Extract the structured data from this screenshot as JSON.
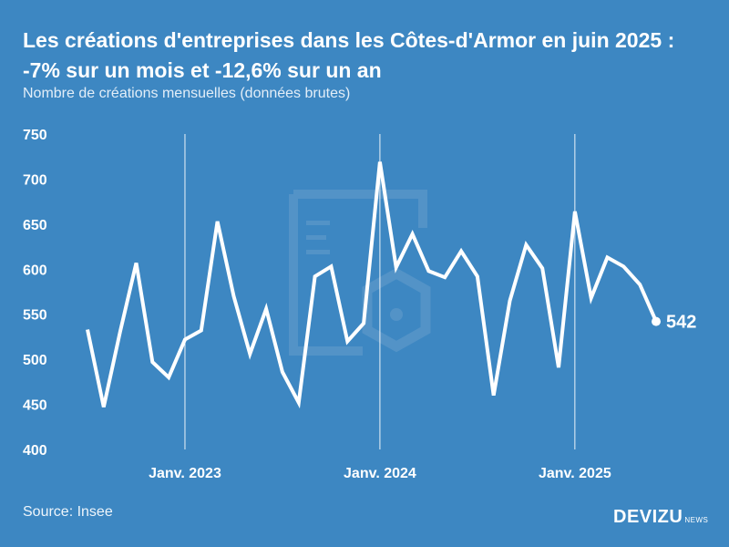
{
  "title": "Les créations d'entreprises dans les Côtes-d'Armor en juin 2025 : -7% sur un mois et -12,6% sur un an",
  "subtitle": "Nombre de créations mensuelles (données brutes)",
  "source": "Source: Insee",
  "brand": {
    "name": "DEVIZU",
    "suffix": "NEWS"
  },
  "colors": {
    "background": "#3d87c2",
    "line": "#ffffff",
    "watermark": "#6a9fcc"
  },
  "watermark_icon": "document-gear-icon",
  "chart_data": {
    "type": "line",
    "title": "Les créations d'entreprises dans les Côtes-d'Armor en juin 2025 : -7% sur un mois et -12,6% sur un an",
    "subtitle": "Nombre de créations mensuelles (données brutes)",
    "xlabel": "",
    "ylabel": "",
    "ylim": [
      400,
      750
    ],
    "y_ticks": [
      400,
      450,
      500,
      550,
      600,
      650,
      700,
      750
    ],
    "x_start": "2022-07",
    "x": [
      "2022-07",
      "2022-08",
      "2022-09",
      "2022-10",
      "2022-11",
      "2022-12",
      "2023-01",
      "2023-02",
      "2023-03",
      "2023-04",
      "2023-05",
      "2023-06",
      "2023-07",
      "2023-08",
      "2023-09",
      "2023-10",
      "2023-11",
      "2023-12",
      "2024-01",
      "2024-02",
      "2024-03",
      "2024-04",
      "2024-05",
      "2024-06",
      "2024-07",
      "2024-08",
      "2024-09",
      "2024-10",
      "2024-11",
      "2024-12",
      "2025-01",
      "2025-02",
      "2025-03",
      "2025-04",
      "2025-05",
      "2025-06"
    ],
    "values": [
      533,
      447,
      530,
      607,
      497,
      480,
      522,
      532,
      653,
      570,
      506,
      556,
      486,
      452,
      592,
      603,
      520,
      540,
      719,
      602,
      639,
      598,
      591,
      620,
      592,
      460,
      565,
      627,
      601,
      491,
      664,
      568,
      613,
      603,
      583,
      542
    ],
    "x_ticks": [
      {
        "label": "Janv. 2023",
        "x": "2023-01"
      },
      {
        "label": "Janv. 2024",
        "x": "2024-01"
      },
      {
        "label": "Janv. 2025",
        "x": "2025-01"
      }
    ],
    "last_value_label": "542",
    "grid": false,
    "legend": "none"
  }
}
